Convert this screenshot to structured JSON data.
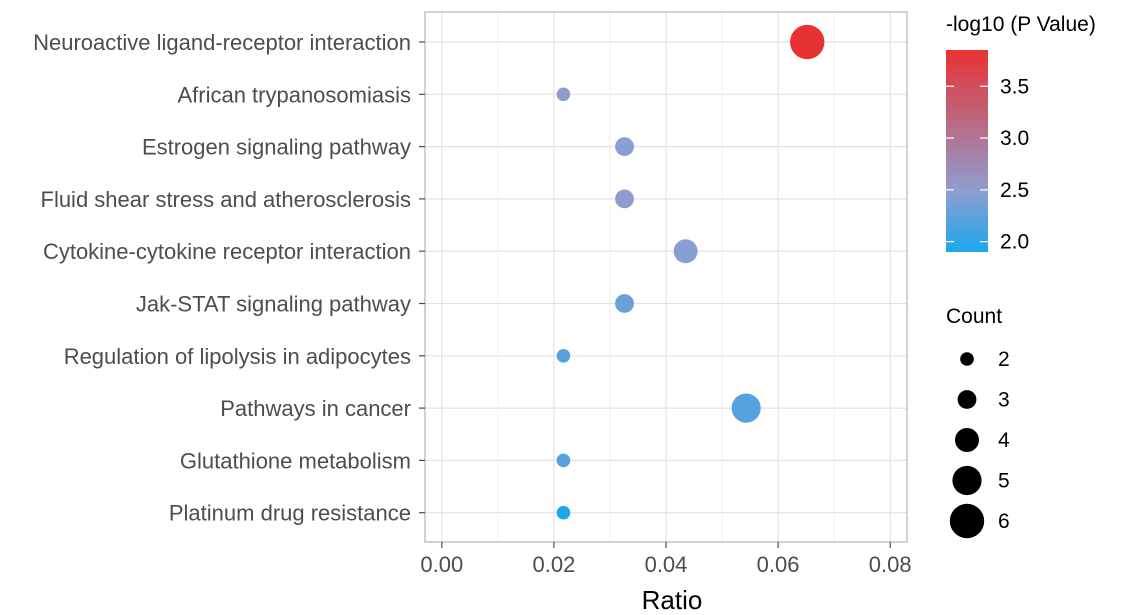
{
  "chart_data": {
    "type": "scatter",
    "title": "",
    "xlabel": "Ratio",
    "ylabel": "",
    "xlim": [
      -0.003,
      0.083
    ],
    "xticks": [
      "0.00",
      "0.02",
      "0.04",
      "0.06",
      "0.08"
    ],
    "xtick_values": [
      0,
      0.02,
      0.04,
      0.06,
      0.08
    ],
    "grid": true,
    "categories": [
      "Neuroactive ligand-receptor interaction",
      "African trypanosomiasis",
      "Estrogen signaling pathway",
      "Fluid shear stress and atherosclerosis",
      "Cytokine-cytokine receptor interaction",
      "Jak-STAT signaling pathway",
      "Regulation of lipolysis in adipocytes",
      "Pathways in cancer",
      "Glutathione metabolism",
      "Platinum drug resistance"
    ],
    "points": [
      {
        "term": "Neuroactive ligand-receptor interaction",
        "ratio": 0.0652,
        "count": 6,
        "neglog10p": 3.85
      },
      {
        "term": "African trypanosomiasis",
        "ratio": 0.0217,
        "count": 2,
        "neglog10p": 2.5
      },
      {
        "term": "Estrogen signaling pathway",
        "ratio": 0.0326,
        "count": 3,
        "neglog10p": 2.45
      },
      {
        "term": "Fluid shear stress and atherosclerosis",
        "ratio": 0.0326,
        "count": 3,
        "neglog10p": 2.5
      },
      {
        "term": "Cytokine-cytokine receptor interaction",
        "ratio": 0.0435,
        "count": 4,
        "neglog10p": 2.45
      },
      {
        "term": "Jak-STAT signaling pathway",
        "ratio": 0.0326,
        "count": 3,
        "neglog10p": 2.3
      },
      {
        "term": "Regulation of lipolysis in adipocytes",
        "ratio": 0.0217,
        "count": 2,
        "neglog10p": 2.2
      },
      {
        "term": "Pathways in cancer",
        "ratio": 0.0543,
        "count": 5,
        "neglog10p": 2.2
      },
      {
        "term": "Glutathione metabolism",
        "ratio": 0.0217,
        "count": 2,
        "neglog10p": 2.2
      },
      {
        "term": "Platinum drug resistance",
        "ratio": 0.0217,
        "count": 2,
        "neglog10p": 1.9
      }
    ],
    "color_legend": {
      "title": "-log10 (P Value)",
      "range": [
        1.9,
        3.85
      ],
      "ticks": [
        "2.0",
        "2.5",
        "3.0",
        "3.5"
      ],
      "tick_values": [
        2.0,
        2.5,
        3.0,
        3.5
      ],
      "low_color": "#1aa7ec",
      "mid_color": "#8e9ed0",
      "high_color": "#e83232"
    },
    "size_legend": {
      "title": "Count",
      "values": [
        2,
        3,
        4,
        5,
        6
      ],
      "labels": [
        "2",
        "3",
        "4",
        "5",
        "6"
      ]
    },
    "legend_position": "right"
  }
}
